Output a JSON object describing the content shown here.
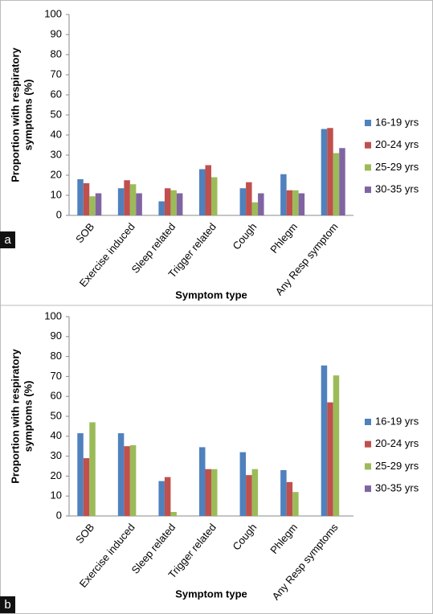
{
  "chart_data": [
    {
      "type": "bar",
      "panel_label": "a",
      "x_label": "Symptom type",
      "y_label": [
        "Proportion with respiratory",
        "symptoms  (%)"
      ],
      "categories": [
        "SOB",
        "Exercise induced",
        "Sleep related",
        "Trigger related",
        "Cough",
        "Phlegm",
        "Any Resp symptom"
      ],
      "series": [
        {
          "name": "16-19 yrs",
          "color": "#4f81bd",
          "values": [
            18,
            13.5,
            7,
            23,
            13.5,
            20.5,
            43
          ]
        },
        {
          "name": "20-24 yrs",
          "color": "#c0504d",
          "values": [
            16,
            17.5,
            13.5,
            25,
            16.5,
            12.5,
            43.5
          ]
        },
        {
          "name": "25-29 yrs",
          "color": "#9bbb59",
          "values": [
            9.5,
            15.5,
            12.5,
            19,
            6.5,
            12.5,
            31
          ]
        },
        {
          "name": "30-35 yrs",
          "color": "#8064a2",
          "values": [
            11,
            11,
            11,
            null,
            11,
            11,
            33.5
          ]
        }
      ],
      "ylim": [
        0,
        100
      ],
      "yticks": [
        0,
        10,
        20,
        30,
        40,
        50,
        60,
        70,
        80,
        90,
        100
      ],
      "grid": false,
      "legend": "right"
    },
    {
      "type": "bar",
      "panel_label": "b",
      "x_label": "Symptom type",
      "y_label": [
        "Proportion with respiratory",
        "symptoms (%)"
      ],
      "categories": [
        "SOB",
        "Exercise induced",
        "Sleep related",
        "Trigger related",
        "Cough",
        "Phlegm",
        "Any Resp symptoms"
      ],
      "series": [
        {
          "name": "16-19 yrs",
          "color": "#4f81bd",
          "values": [
            41.5,
            41.5,
            17.5,
            34.5,
            32,
            23,
            75.5
          ]
        },
        {
          "name": "20-24 yrs",
          "color": "#c0504d",
          "values": [
            29,
            35,
            19.5,
            23.5,
            20.5,
            17,
            57
          ]
        },
        {
          "name": "25-29 yrs",
          "color": "#9bbb59",
          "values": [
            47,
            35.5,
            2,
            23.5,
            23.5,
            12,
            70.5
          ]
        },
        {
          "name": "30-35 yrs",
          "color": "#8064a2",
          "values": [
            null,
            null,
            null,
            null,
            null,
            null,
            null
          ]
        }
      ],
      "ylim": [
        0,
        100
      ],
      "yticks": [
        0,
        10,
        20,
        30,
        40,
        50,
        60,
        70,
        80,
        90,
        100
      ],
      "grid": false,
      "legend": "right"
    }
  ]
}
